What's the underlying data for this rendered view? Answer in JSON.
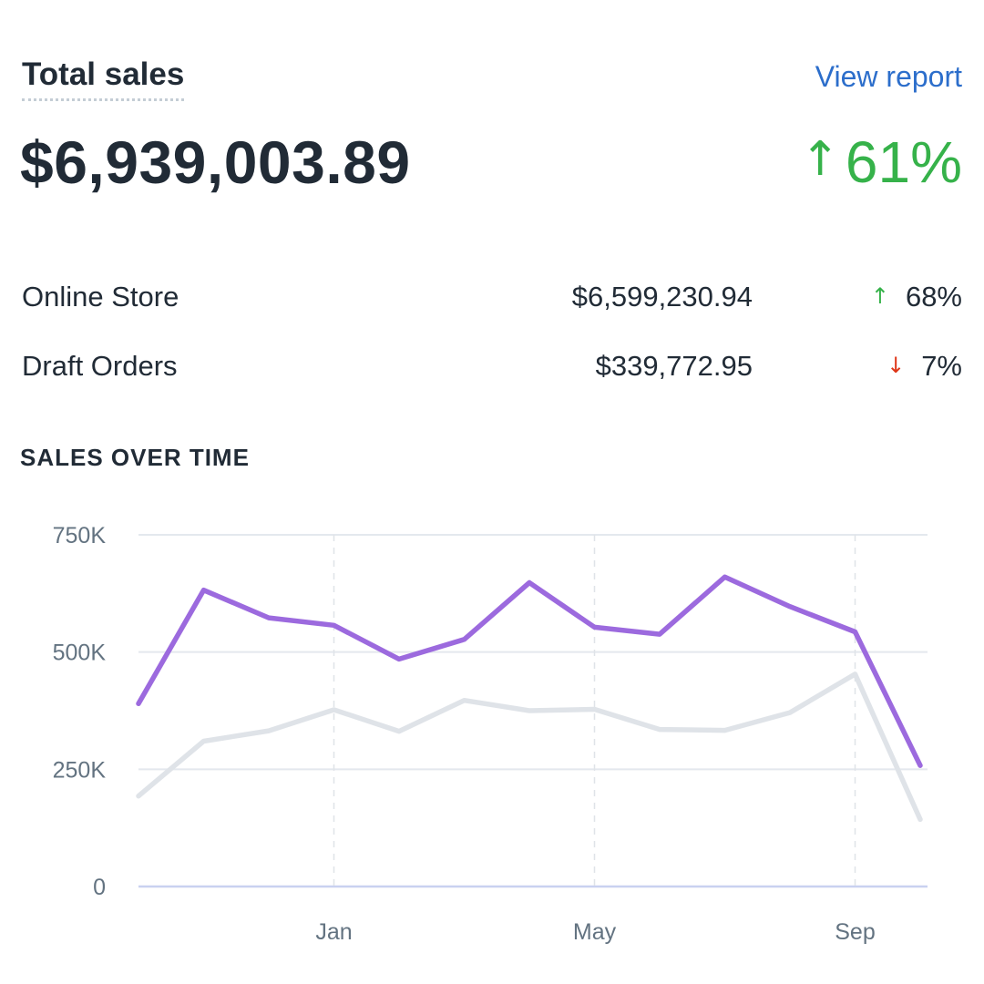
{
  "card": {
    "title": "Total sales",
    "view_report_label": "View report",
    "total_value": "$6,939,003.89",
    "total_change": "61%",
    "total_change_direction": "up"
  },
  "breakdown": [
    {
      "label": "Online Store",
      "amount": "$6,599,230.94",
      "change": "68%",
      "direction": "up"
    },
    {
      "label": "Draft Orders",
      "amount": "$339,772.95",
      "change": "7%",
      "direction": "down"
    }
  ],
  "section_title": "SALES OVER TIME",
  "colors": {
    "current_series": "#9c6ade",
    "previous_series": "#dfe3e8",
    "positive": "#36b24a",
    "negative": "#de3618",
    "link": "#2c6ecb"
  },
  "chart_data": {
    "type": "line",
    "title": "SALES OVER TIME",
    "ylim": [
      0,
      750000
    ],
    "y_ticks": [
      {
        "value": 0,
        "label": "0"
      },
      {
        "value": 250000,
        "label": "250K"
      },
      {
        "value": 500000,
        "label": "500K"
      },
      {
        "value": 750000,
        "label": "750K"
      }
    ],
    "x_ticks": [
      {
        "index": 3,
        "label": "Jan"
      },
      {
        "index": 7,
        "label": "May"
      },
      {
        "index": 11,
        "label": "Sep"
      }
    ],
    "grid": true,
    "series": [
      {
        "color": "#9c6ade",
        "values": [
          390000,
          632000,
          573000,
          557000,
          485000,
          527000,
          648000,
          553000,
          538000,
          660000,
          597000,
          543000,
          258000
        ]
      },
      {
        "color": "#dfe3e8",
        "values": [
          193000,
          310000,
          332000,
          377000,
          331000,
          397000,
          375000,
          378000,
          335000,
          333000,
          371000,
          453000,
          143000
        ]
      }
    ]
  }
}
